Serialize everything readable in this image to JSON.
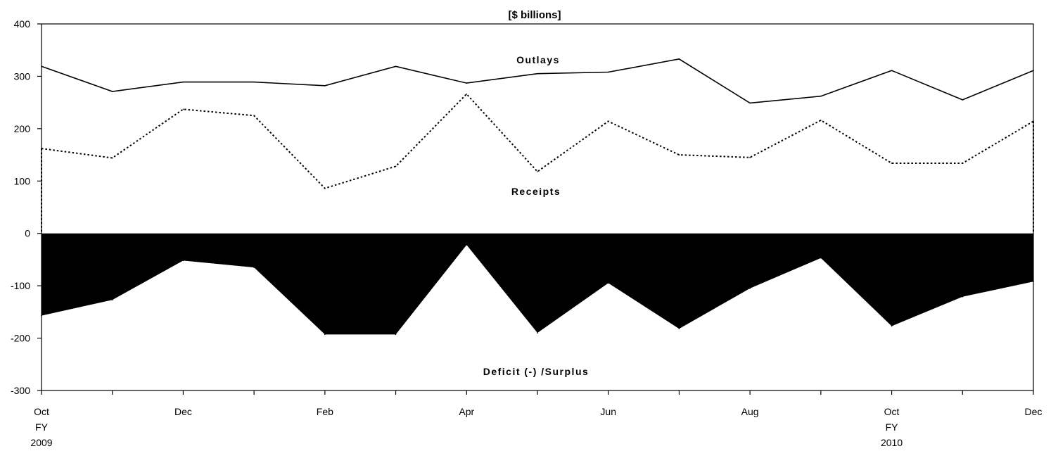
{
  "chart_data": {
    "type": "line",
    "title": "[$ billions]",
    "xlabel": "",
    "ylabel": "",
    "ylim": [
      -300,
      400
    ],
    "yticks": [
      400,
      300,
      200,
      100,
      0,
      -100,
      -200,
      -300
    ],
    "ytick_labels": [
      "400",
      "300",
      "200",
      "100",
      "0",
      "-100",
      "-200",
      "-300"
    ],
    "x_tick_labels": [
      "Oct",
      "Dec",
      "Feb",
      "Apr",
      "Jun",
      "Aug",
      "Oct",
      "Dec"
    ],
    "x_tick_sub": [
      {
        "index": 0,
        "lines": [
          "FY",
          "2009"
        ]
      },
      {
        "index": 12,
        "lines": [
          "FY",
          "2010"
        ]
      }
    ],
    "n_points": 15,
    "grid": false,
    "legend": "none",
    "series": [
      {
        "name": "Outlays",
        "style": "solid",
        "values": [
          319,
          271,
          289,
          289,
          282,
          319,
          287,
          305,
          308,
          333,
          249,
          262,
          311,
          255,
          311
        ]
      },
      {
        "name": "Receipts",
        "style": "dotted",
        "values": [
          162,
          144,
          237,
          225,
          86,
          128,
          266,
          118,
          214,
          150,
          145,
          216,
          134,
          134,
          214
        ]
      },
      {
        "name": "Deficit (-) /Surplus",
        "style": "filled-area",
        "color": "#000000",
        "values": [
          -157,
          -127,
          -52,
          -65,
          -193,
          -193,
          -22,
          -190,
          -95,
          -182,
          -105,
          -47,
          -177,
          -121,
          -92
        ]
      }
    ],
    "annotations": [
      {
        "text": "Outlays",
        "series": 0
      },
      {
        "text": "Receipts",
        "series": 1
      },
      {
        "text": "Deficit (-) /Surplus",
        "series": 2
      }
    ]
  }
}
